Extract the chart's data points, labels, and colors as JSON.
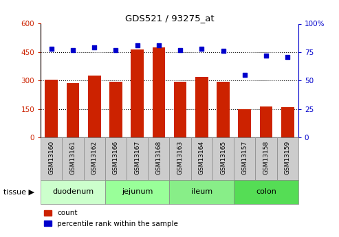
{
  "title": "GDS521 / 93275_at",
  "samples": [
    "GSM13160",
    "GSM13161",
    "GSM13162",
    "GSM13166",
    "GSM13167",
    "GSM13168",
    "GSM13163",
    "GSM13164",
    "GSM13165",
    "GSM13157",
    "GSM13158",
    "GSM13159"
  ],
  "counts": [
    305,
    285,
    325,
    295,
    465,
    475,
    295,
    320,
    295,
    148,
    165,
    160
  ],
  "percentiles": [
    78,
    77,
    79,
    77,
    81,
    81,
    77,
    78,
    76,
    55,
    72,
    71
  ],
  "tissues": [
    {
      "label": "duodenum",
      "start": 0,
      "end": 3,
      "color": "#ccffcc"
    },
    {
      "label": "jejunum",
      "start": 3,
      "end": 6,
      "color": "#99ff99"
    },
    {
      "label": "ileum",
      "start": 6,
      "end": 9,
      "color": "#88ee88"
    },
    {
      "label": "colon",
      "start": 9,
      "end": 12,
      "color": "#55dd55"
    }
  ],
  "bar_color": "#cc2200",
  "dot_color": "#0000cc",
  "left_ylim": [
    0,
    600
  ],
  "right_ylim": [
    0,
    100
  ],
  "left_yticks": [
    0,
    150,
    300,
    450,
    600
  ],
  "right_yticks": [
    0,
    25,
    50,
    75,
    100
  ],
  "left_ytick_labels": [
    "0",
    "150",
    "300",
    "450",
    "600"
  ],
  "right_ytick_labels": [
    "0",
    "25",
    "50",
    "75",
    "100%"
  ],
  "grid_values": [
    150,
    300,
    450
  ],
  "legend_count_label": "count",
  "legend_pct_label": "percentile rank within the sample",
  "tissue_label": "tissue ▶",
  "sample_box_color": "#cccccc",
  "sample_box_edge": "#888888"
}
